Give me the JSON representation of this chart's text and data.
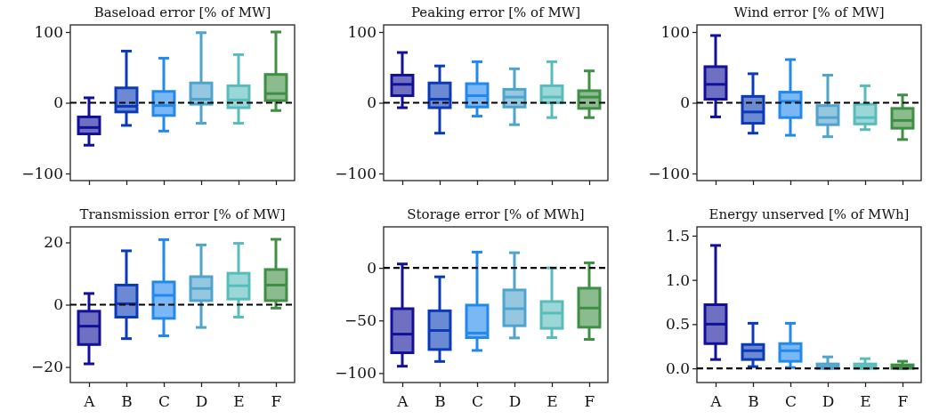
{
  "chart_data": [
    {
      "type": "box",
      "title": "Baseload error [% of MW]",
      "categories": [
        null,
        null,
        null,
        null,
        null,
        null
      ],
      "colors": [
        "#10109a",
        "#0a3ab8",
        "#2288ee",
        "#4ea4cc",
        "#58bcbc",
        "#3e8e44"
      ],
      "ylim": [
        -110,
        110
      ],
      "yticks": [
        -100,
        0,
        100
      ],
      "boxes": [
        {
          "low": -60,
          "q1": -44,
          "median": -35,
          "q3": -20,
          "high": 7
        },
        {
          "low": -32,
          "q1": -13,
          "median": -5,
          "q3": 21,
          "high": 73
        },
        {
          "low": -40,
          "q1": -18,
          "median": -4,
          "q3": 16,
          "high": 63
        },
        {
          "low": -29,
          "q1": -2,
          "median": 5,
          "q3": 28,
          "high": 99
        },
        {
          "low": -29,
          "q1": -7,
          "median": 4,
          "q3": 24,
          "high": 68
        },
        {
          "low": -11,
          "q1": 3,
          "median": 13,
          "q3": 40,
          "high": 100
        }
      ],
      "ref_lines": [
        {
          "axis": "y",
          "value": 0,
          "color": "#000000",
          "line_style": "dashed"
        }
      ]
    },
    {
      "type": "box",
      "title": "Peaking error [% of MW]",
      "categories": [
        null,
        null,
        null,
        null,
        null,
        null
      ],
      "colors": [
        "#10109a",
        "#0a3ab8",
        "#2288ee",
        "#4ea4cc",
        "#58bcbc",
        "#3e8e44"
      ],
      "ylim": [
        -110,
        110
      ],
      "yticks": [
        -100,
        0,
        100
      ],
      "boxes": [
        {
          "low": -7,
          "q1": 10,
          "median": 26,
          "q3": 39,
          "high": 71
        },
        {
          "low": -43,
          "q1": -7,
          "median": 5,
          "q3": 28,
          "high": 52
        },
        {
          "low": -19,
          "q1": -6,
          "median": 10,
          "q3": 27,
          "high": 58
        },
        {
          "low": -31,
          "q1": -6,
          "median": 8,
          "q3": 19,
          "high": 48
        },
        {
          "low": -21,
          "q1": 0,
          "median": 8,
          "q3": 24,
          "high": 58
        },
        {
          "low": -21,
          "q1": -8,
          "median": 8,
          "q3": 17,
          "high": 45
        }
      ],
      "ref_lines": [
        {
          "axis": "y",
          "value": 0,
          "color": "#000000",
          "line_style": "dashed"
        }
      ]
    },
    {
      "type": "box",
      "title": "Wind error [% of MW]",
      "categories": [
        null,
        null,
        null,
        null,
        null,
        null
      ],
      "colors": [
        "#10109a",
        "#0a3ab8",
        "#2288ee",
        "#4ea4cc",
        "#58bcbc",
        "#3e8e44"
      ],
      "ylim": [
        -110,
        110
      ],
      "yticks": [
        -100,
        0,
        100
      ],
      "boxes": [
        {
          "low": -20,
          "q1": 5,
          "median": 26,
          "q3": 51,
          "high": 95
        },
        {
          "low": -43,
          "q1": -29,
          "median": -13,
          "q3": 9,
          "high": 41
        },
        {
          "low": -46,
          "q1": -21,
          "median": 2,
          "q3": 15,
          "high": 61
        },
        {
          "low": -48,
          "q1": -31,
          "median": -21,
          "q3": -4,
          "high": 39
        },
        {
          "low": -38,
          "q1": -30,
          "median": -21,
          "q3": -2,
          "high": 24
        },
        {
          "low": -52,
          "q1": -36,
          "median": -25,
          "q3": -8,
          "high": 11
        }
      ],
      "ref_lines": [
        {
          "axis": "y",
          "value": 0,
          "color": "#000000",
          "line_style": "dashed"
        }
      ]
    },
    {
      "type": "box",
      "title": "Transmission error [% of MW]",
      "categories": [
        "A",
        "B",
        "C",
        "D",
        "E",
        "F"
      ],
      "colors": [
        "#10109a",
        "#0a3ab8",
        "#2288ee",
        "#4ea4cc",
        "#58bcbc",
        "#3e8e44"
      ],
      "ylim": [
        -25,
        25
      ],
      "yticks": [
        -20,
        0,
        20
      ],
      "boxes": [
        {
          "low": -19,
          "q1": -12.8,
          "median": -6.9,
          "q3": -2.1,
          "high": 3.6
        },
        {
          "low": -10.9,
          "q1": -4,
          "median": 0.3,
          "q3": 6.3,
          "high": 17.3
        },
        {
          "low": -10,
          "q1": -4.4,
          "median": 3,
          "q3": 7.3,
          "high": 20.9
        },
        {
          "low": -7.3,
          "q1": 1.3,
          "median": 5.2,
          "q3": 9,
          "high": 19.2
        },
        {
          "low": -4,
          "q1": 1.8,
          "median": 6.1,
          "q3": 10.1,
          "high": 19.7
        },
        {
          "low": -1.1,
          "q1": 1.3,
          "median": 6.3,
          "q3": 11.3,
          "high": 21
        }
      ],
      "ref_lines": [
        {
          "axis": "y",
          "value": 0,
          "color": "#000000",
          "line_style": "dashed"
        }
      ]
    },
    {
      "type": "box",
      "title": "Storage error [% of MWh]",
      "categories": [
        "A",
        "B",
        "C",
        "D",
        "E",
        "F"
      ],
      "colors": [
        "#10109a",
        "#0a3ab8",
        "#2288ee",
        "#4ea4cc",
        "#58bcbc",
        "#3e8e44"
      ],
      "ylim": [
        -109,
        39
      ],
      "yticks": [
        -100,
        -50,
        0
      ],
      "boxes": [
        {
          "low": -93.5,
          "q1": -80.7,
          "median": -63,
          "q3": -38.8,
          "high": 3.7
        },
        {
          "low": -89,
          "q1": -77.6,
          "median": -59.5,
          "q3": -40.8,
          "high": -8.5
        },
        {
          "low": -78.5,
          "q1": -66.3,
          "median": -62,
          "q3": -35.4,
          "high": 15
        },
        {
          "low": -66.6,
          "q1": -55,
          "median": -38.8,
          "q3": -21,
          "high": 14.4
        },
        {
          "low": -66.3,
          "q1": -57.5,
          "median": -43,
          "q3": -32,
          "high": 0
        },
        {
          "low": -68,
          "q1": -56.4,
          "median": -38.2,
          "q3": -19.3,
          "high": 4.8
        }
      ],
      "ref_lines": [
        {
          "axis": "y",
          "value": 0,
          "color": "#000000",
          "line_style": "dashed"
        }
      ]
    },
    {
      "type": "box",
      "title": "Energy unserved [% of MWh]",
      "categories": [
        "A",
        "B",
        "C",
        "D",
        "E",
        "F"
      ],
      "colors": [
        "#10109a",
        "#0a3ab8",
        "#2288ee",
        "#4ea4cc",
        "#58bcbc",
        "#3e8e44"
      ],
      "ylim": [
        -0.16,
        1.6
      ],
      "yticks": [
        {
          "value": 0,
          "label": "0.0"
        },
        {
          "value": 0.5,
          "label": "0.5"
        },
        {
          "value": 1,
          "label": "1.0"
        },
        {
          "value": 1.5,
          "label": "1.5"
        }
      ],
      "boxes": [
        {
          "low": 0.1,
          "q1": 0.28,
          "median": 0.5,
          "q3": 0.72,
          "high": 1.39
        },
        {
          "low": 0.02,
          "q1": 0.1,
          "median": 0.2,
          "q3": 0.27,
          "high": 0.51
        },
        {
          "low": 0.01,
          "q1": 0.08,
          "median": 0.2,
          "q3": 0.28,
          "high": 0.51
        },
        {
          "low": 0,
          "q1": 0,
          "median": 0.02,
          "q3": 0.05,
          "high": 0.13
        },
        {
          "low": 0,
          "q1": 0,
          "median": 0.02,
          "q3": 0.05,
          "high": 0.11
        },
        {
          "low": 0,
          "q1": 0,
          "median": 0.02,
          "q3": 0.04,
          "high": 0.08
        }
      ],
      "ref_lines": [
        {
          "axis": "y",
          "value": 0,
          "color": "#000000",
          "line_style": "dashed"
        }
      ]
    }
  ]
}
